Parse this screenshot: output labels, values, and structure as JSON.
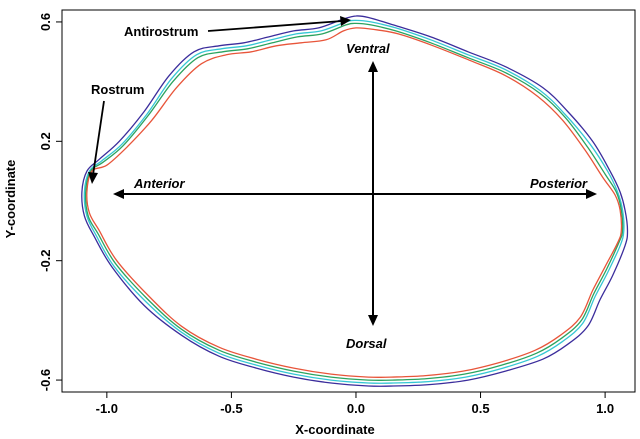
{
  "chart_data": {
    "type": "line",
    "xlabel": "X-coordinate",
    "ylabel": "Y-coordinate",
    "xlim": [
      -1.18,
      1.12
    ],
    "ylim": [
      -0.64,
      0.64
    ],
    "x_ticks": [
      -1.0,
      -0.5,
      0.0,
      0.5,
      1.0
    ],
    "x_tick_labels": [
      "-1.0",
      "-0.5",
      "0.0",
      "0.5",
      "1.0"
    ],
    "y_ticks": [
      -0.6,
      -0.2,
      0.2,
      0.6
    ],
    "y_tick_labels": [
      "-0.6",
      "-0.2",
      "0.2",
      "0.6"
    ],
    "grid": false,
    "legend": "none",
    "annotations": {
      "antirostrum": "Antirostrum",
      "rostrum": "Rostrum",
      "ventral": "Ventral",
      "dorsal": "Dorsal",
      "anterior": "Anterior",
      "posterior": "Posterior"
    },
    "series": [
      {
        "color": "#3b2d9c",
        "x": [
          -1.1,
          -1.08,
          -1.03,
          -0.95,
          -0.85,
          -0.75,
          -0.65,
          -0.55,
          -0.45,
          -0.35,
          -0.25,
          -0.15,
          -0.05,
          0.0,
          0.05,
          0.15,
          0.3,
          0.45,
          0.6,
          0.75,
          0.85,
          0.95,
          1.02,
          1.06,
          1.08,
          1.09,
          1.08,
          1.03,
          0.98,
          0.93,
          0.85,
          0.75,
          0.6,
          0.45,
          0.3,
          0.15,
          0.05,
          -0.1,
          -0.25,
          -0.4,
          -0.55,
          -0.7,
          -0.85,
          -0.98,
          -1.05,
          -1.09,
          -1.1
        ],
        "y": [
          0.03,
          0.1,
          0.14,
          0.2,
          0.3,
          0.42,
          0.5,
          0.52,
          0.53,
          0.55,
          0.57,
          0.58,
          0.61,
          0.62,
          0.615,
          0.59,
          0.55,
          0.5,
          0.45,
          0.38,
          0.3,
          0.2,
          0.1,
          0.03,
          -0.03,
          -0.1,
          -0.15,
          -0.25,
          -0.33,
          -0.42,
          -0.48,
          -0.53,
          -0.57,
          -0.6,
          -0.615,
          -0.62,
          -0.62,
          -0.61,
          -0.59,
          -0.56,
          -0.52,
          -0.45,
          -0.35,
          -0.22,
          -0.12,
          -0.05,
          0.03
        ]
      },
      {
        "color": "#35c7d4",
        "x": [
          -1.09,
          -1.07,
          -1.02,
          -0.94,
          -0.84,
          -0.74,
          -0.64,
          -0.54,
          -0.44,
          -0.34,
          -0.24,
          -0.14,
          -0.04,
          0.0,
          0.06,
          0.16,
          0.3,
          0.45,
          0.6,
          0.74,
          0.84,
          0.94,
          1.01,
          1.05,
          1.07,
          1.075,
          1.06,
          1.01,
          0.96,
          0.91,
          0.83,
          0.73,
          0.59,
          0.44,
          0.29,
          0.15,
          0.05,
          -0.1,
          -0.25,
          -0.4,
          -0.55,
          -0.7,
          -0.84,
          -0.97,
          -1.04,
          -1.08,
          -1.09
        ],
        "y": [
          0.03,
          0.1,
          0.135,
          0.19,
          0.29,
          0.41,
          0.49,
          0.51,
          0.52,
          0.54,
          0.56,
          0.57,
          0.6,
          0.605,
          0.6,
          0.58,
          0.54,
          0.49,
          0.44,
          0.37,
          0.29,
          0.19,
          0.1,
          0.03,
          -0.03,
          -0.1,
          -0.15,
          -0.24,
          -0.32,
          -0.41,
          -0.47,
          -0.52,
          -0.56,
          -0.59,
          -0.605,
          -0.61,
          -0.61,
          -0.6,
          -0.58,
          -0.55,
          -0.51,
          -0.44,
          -0.34,
          -0.22,
          -0.12,
          -0.05,
          0.03
        ]
      },
      {
        "color": "#2ba35f",
        "x": [
          -1.085,
          -1.065,
          -1.015,
          -0.935,
          -0.835,
          -0.735,
          -0.635,
          -0.535,
          -0.435,
          -0.335,
          -0.235,
          -0.135,
          -0.04,
          0.0,
          0.06,
          0.16,
          0.3,
          0.45,
          0.6,
          0.74,
          0.84,
          0.93,
          1.0,
          1.045,
          1.065,
          1.07,
          1.055,
          1.005,
          0.955,
          0.905,
          0.825,
          0.725,
          0.585,
          0.435,
          0.285,
          0.145,
          0.05,
          -0.1,
          -0.25,
          -0.4,
          -0.55,
          -0.7,
          -0.835,
          -0.965,
          -1.035,
          -1.075,
          -1.085
        ],
        "y": [
          0.03,
          0.1,
          0.13,
          0.185,
          0.285,
          0.4,
          0.48,
          0.5,
          0.51,
          0.53,
          0.55,
          0.56,
          0.59,
          0.595,
          0.59,
          0.57,
          0.53,
          0.48,
          0.43,
          0.36,
          0.28,
          0.18,
          0.09,
          0.03,
          -0.03,
          -0.1,
          -0.14,
          -0.23,
          -0.31,
          -0.4,
          -0.46,
          -0.51,
          -0.55,
          -0.58,
          -0.595,
          -0.6,
          -0.6,
          -0.59,
          -0.57,
          -0.54,
          -0.5,
          -0.43,
          -0.33,
          -0.21,
          -0.11,
          -0.05,
          0.03
        ]
      },
      {
        "color": "#e8553a",
        "x": [
          -1.08,
          -1.06,
          -1.0,
          -0.92,
          -0.82,
          -0.72,
          -0.62,
          -0.52,
          -0.42,
          -0.32,
          -0.22,
          -0.12,
          -0.05,
          0.0,
          0.07,
          0.17,
          0.31,
          0.46,
          0.6,
          0.73,
          0.83,
          0.92,
          0.99,
          1.04,
          1.06,
          1.065,
          1.05,
          1.0,
          0.95,
          0.9,
          0.82,
          0.72,
          0.58,
          0.43,
          0.28,
          0.14,
          0.05,
          -0.1,
          -0.25,
          -0.4,
          -0.55,
          -0.7,
          -0.83,
          -0.96,
          -1.03,
          -1.07,
          -1.08
        ],
        "y": [
          0.03,
          0.1,
          0.12,
          0.18,
          0.27,
          0.38,
          0.46,
          0.49,
          0.5,
          0.52,
          0.53,
          0.54,
          0.57,
          0.58,
          0.575,
          0.56,
          0.52,
          0.47,
          0.42,
          0.35,
          0.27,
          0.17,
          0.08,
          0.02,
          -0.03,
          -0.1,
          -0.14,
          -0.22,
          -0.3,
          -0.39,
          -0.45,
          -0.5,
          -0.54,
          -0.57,
          -0.585,
          -0.59,
          -0.59,
          -0.58,
          -0.56,
          -0.53,
          -0.49,
          -0.42,
          -0.32,
          -0.2,
          -0.1,
          -0.04,
          0.03
        ]
      }
    ]
  }
}
